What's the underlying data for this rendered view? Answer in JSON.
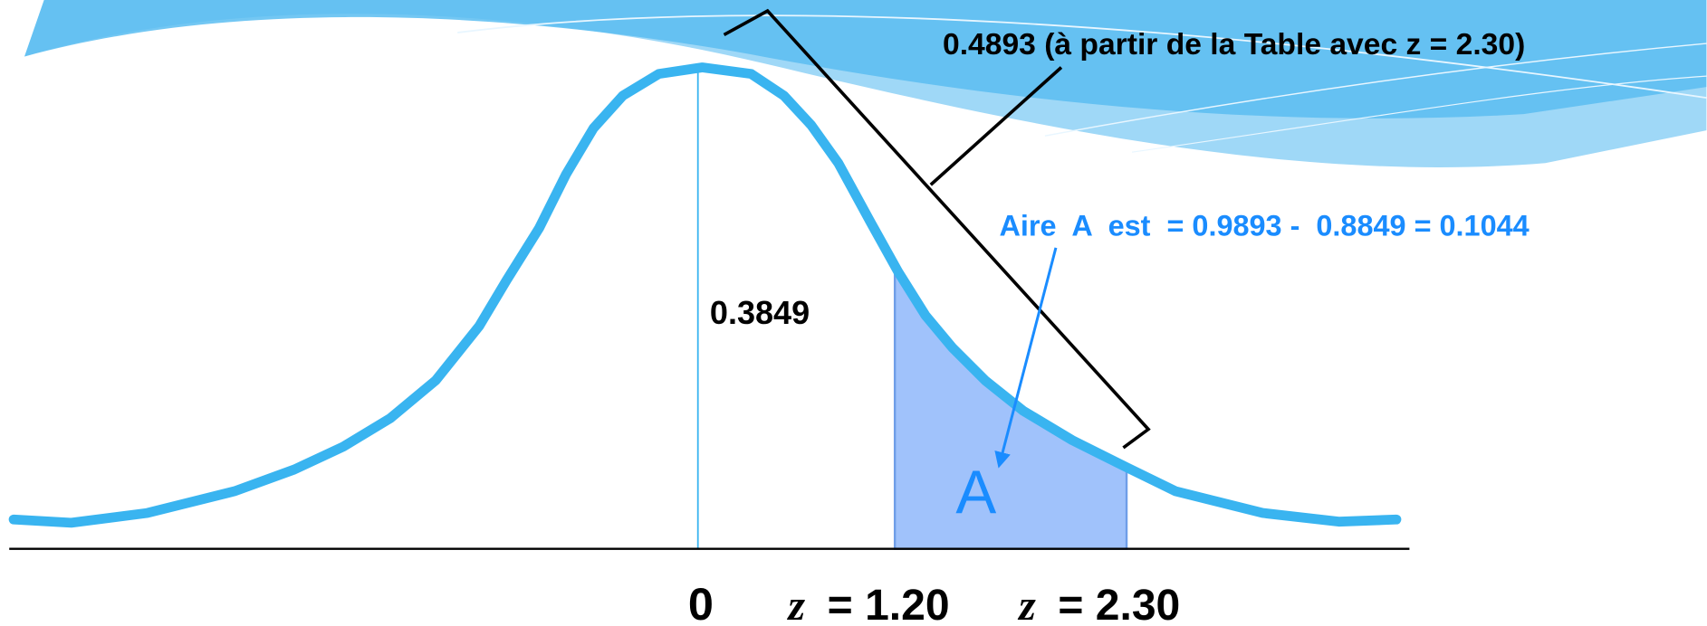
{
  "header": {
    "table_note": "0.4893 (à partir de la Table avec z = 2.30)",
    "area_formula": "Aire  A  est  = 0.9893 -  0.8849 = 0.1044"
  },
  "regions": {
    "center_area": "0.3849",
    "area_label": "A"
  },
  "axis_labels": [
    {
      "text": "0"
    },
    {
      "var": "z",
      "text": "= 1.20"
    },
    {
      "var": "z",
      "text": "= 2.30"
    }
  ]
}
